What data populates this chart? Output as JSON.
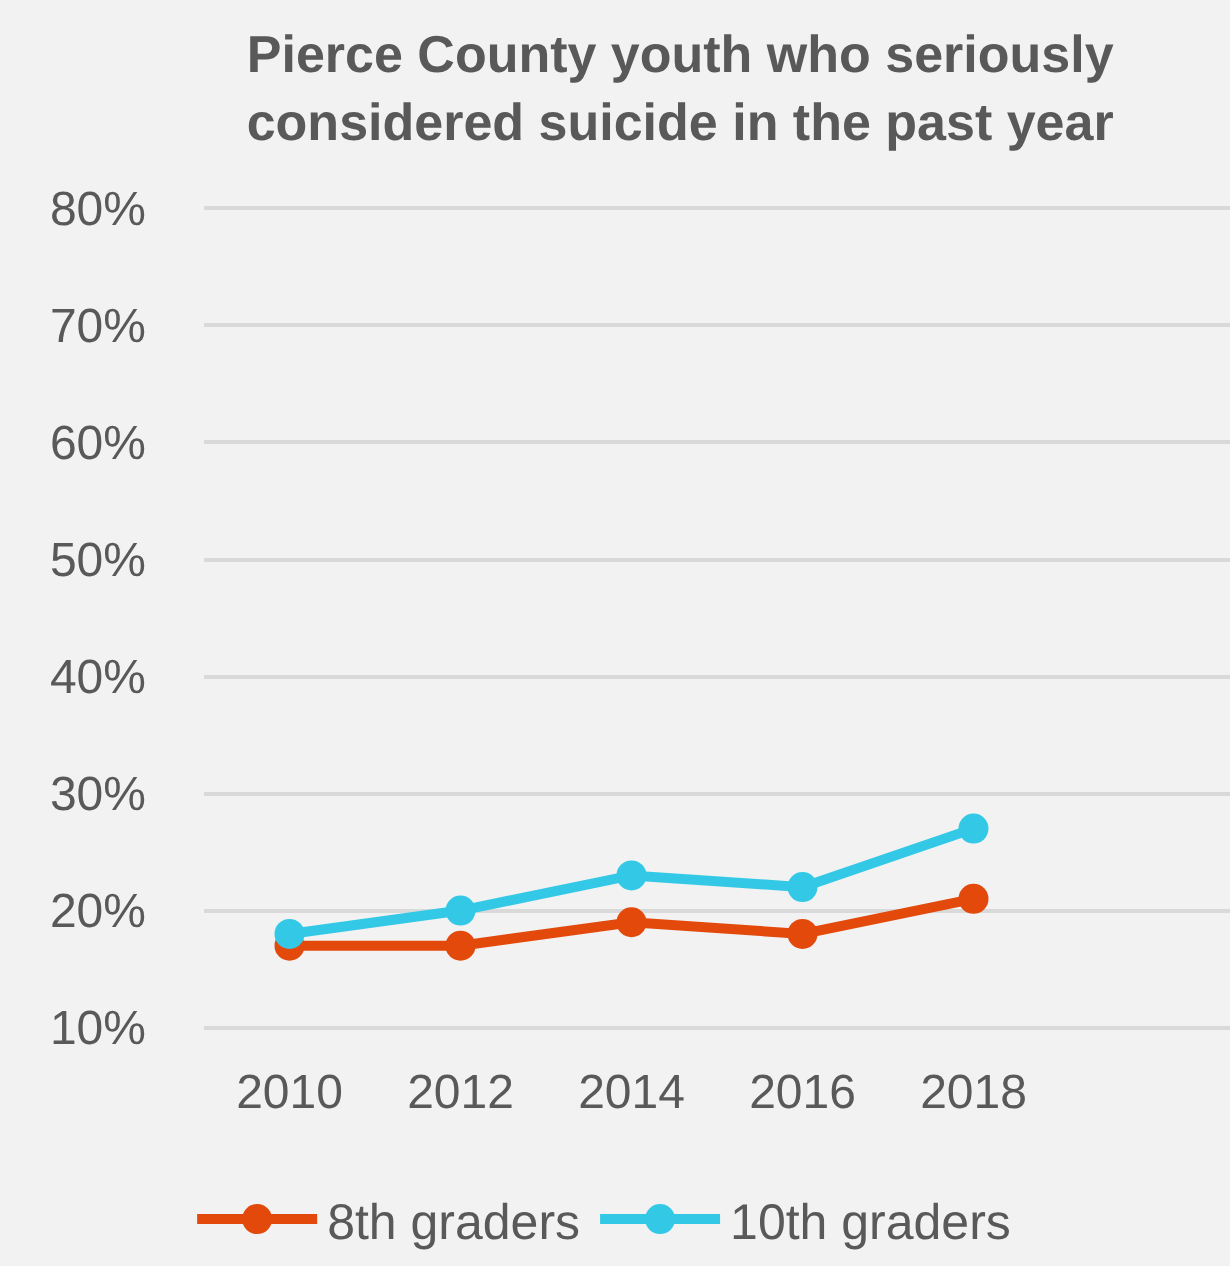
{
  "chart_data": {
    "type": "line",
    "title": "Pierce County youth who seriously considered suicide in the past year",
    "categories": [
      "2010",
      "2012",
      "2014",
      "2016",
      "2018",
      null
    ],
    "series": [
      {
        "name": "8th graders",
        "color": "#e2490b",
        "values": [
          17,
          17,
          19,
          18,
          21,
          null
        ]
      },
      {
        "name": "10th graders",
        "color": "#33c9e6",
        "values": [
          18,
          20,
          23,
          22,
          27,
          null
        ]
      }
    ],
    "ylim": [
      10,
      80
    ],
    "yticks": [
      {
        "value": 10,
        "label": "10%"
      },
      {
        "value": 20,
        "label": "20%"
      },
      {
        "value": 30,
        "label": "30%"
      },
      {
        "value": 40,
        "label": "40%"
      },
      {
        "value": 50,
        "label": "50%"
      },
      {
        "value": 60,
        "label": "60%"
      },
      {
        "value": 70,
        "label": "70%"
      },
      {
        "value": 80,
        "label": "80%"
      }
    ],
    "grid": "y",
    "legend": "bottom",
    "marker": "circle",
    "line_style": "solid"
  }
}
